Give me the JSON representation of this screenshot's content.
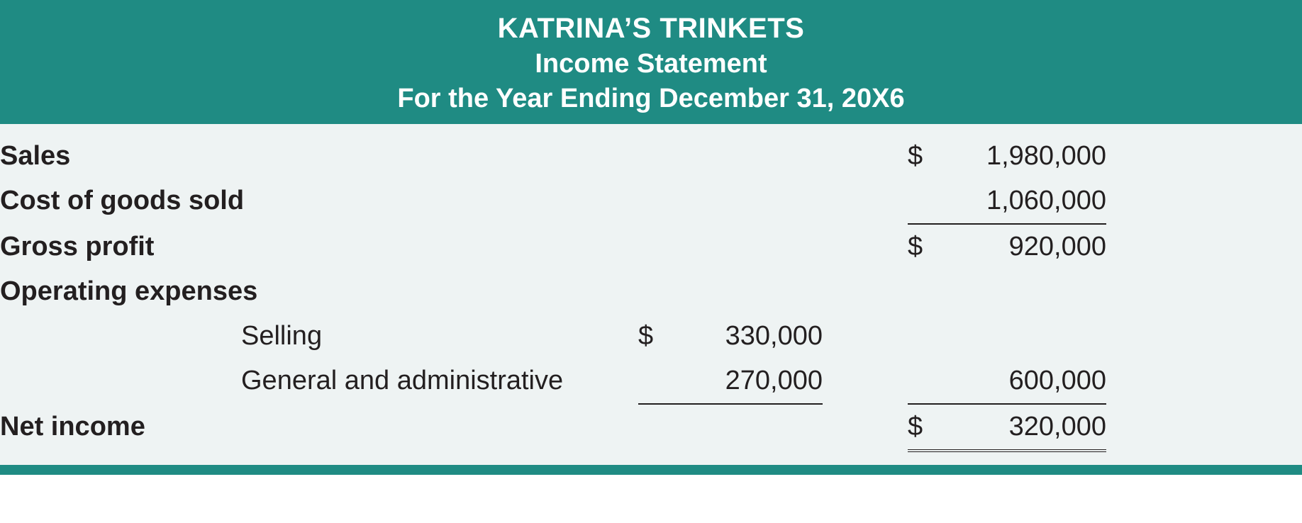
{
  "colors": {
    "header_bg": "#1f8b83",
    "body_bg": "#eef3f3",
    "footer_bg": "#1f8b83",
    "text": "#231f20",
    "header_text": "#ffffff"
  },
  "header": {
    "company": "KATRINA’S TRINKETS",
    "title": "Income Statement",
    "period": "For the Year Ending December 31, 20X6"
  },
  "rows": {
    "sales": {
      "label": "Sales",
      "currency2": "$",
      "value2": "1,980,000"
    },
    "cogs": {
      "label": "Cost of goods sold",
      "value2": "1,060,000"
    },
    "gross": {
      "label": "Gross profit",
      "currency2": "$",
      "value2": "920,000"
    },
    "opex_hdr": {
      "label": "Operating expenses"
    },
    "selling": {
      "label": "Selling",
      "currency1": "$",
      "value1": "330,000"
    },
    "ga": {
      "label": "General and administrative",
      "value1": "270,000",
      "value2": "600,000"
    },
    "net": {
      "label": "Net income",
      "currency2": "$",
      "value2": "320,000"
    }
  }
}
